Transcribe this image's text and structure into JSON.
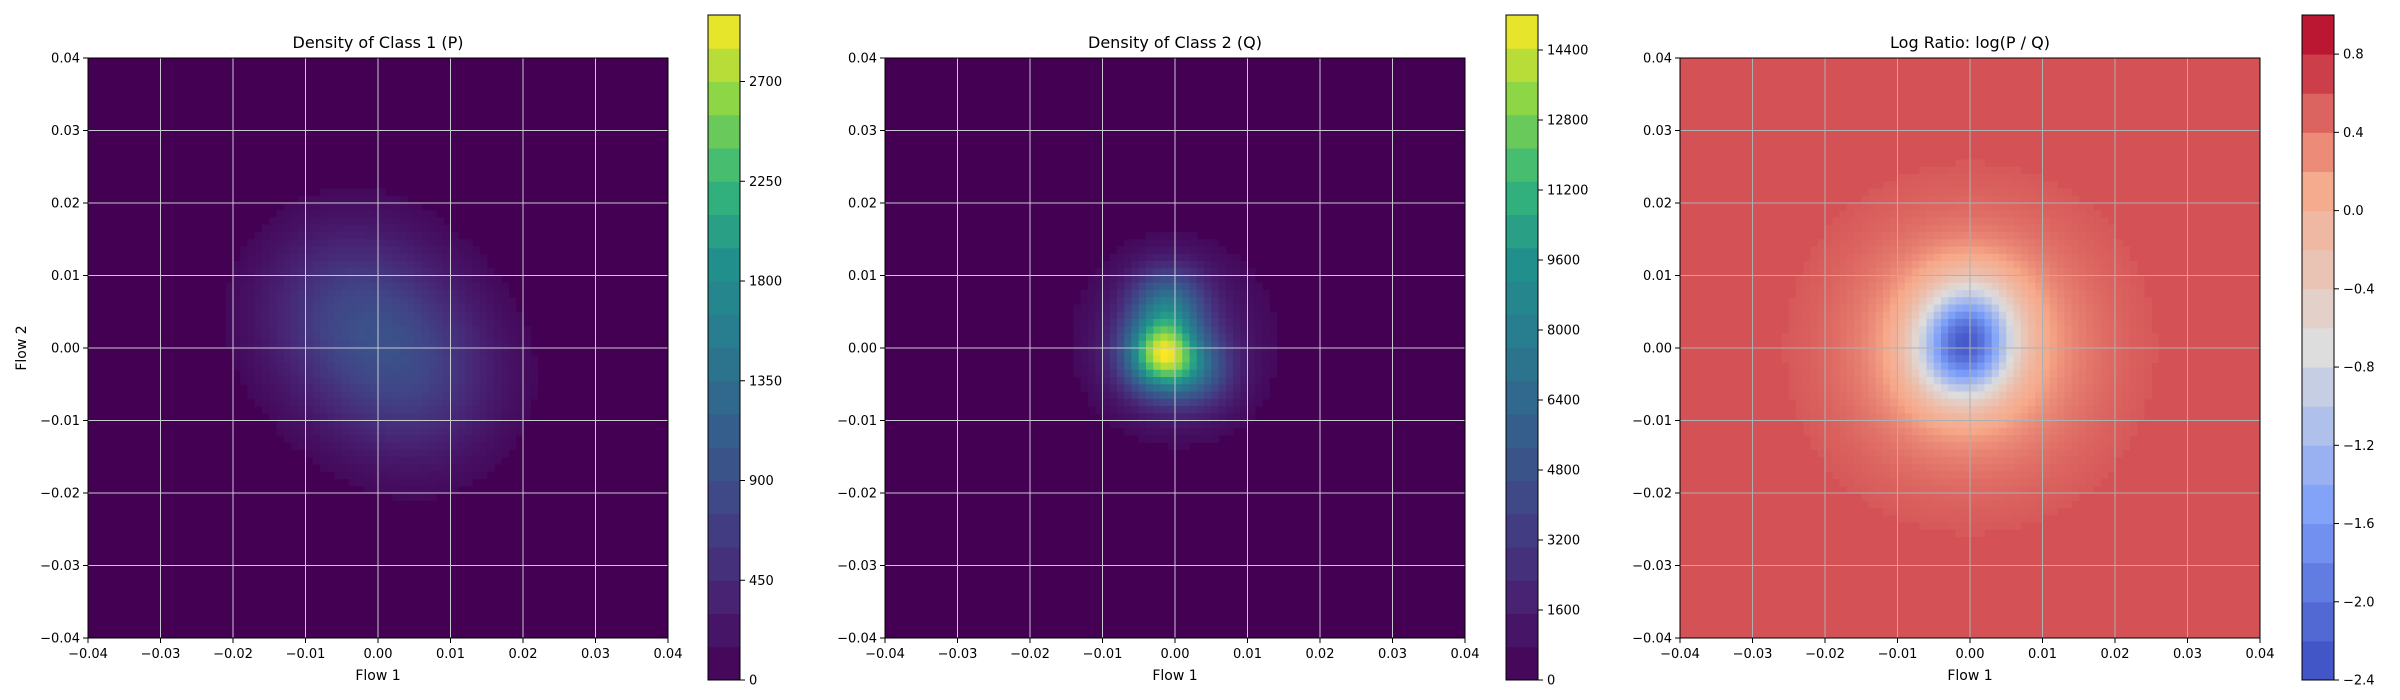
{
  "chart_data": [
    {
      "type": "heatmap",
      "title": "Density of Class 1 (P)",
      "xlabel": "Flow 1",
      "ylabel": "Flow 2",
      "xlim": [
        -0.04,
        0.04
      ],
      "ylim": [
        -0.04,
        0.04
      ],
      "xticks": [
        "−0.04",
        "−0.03",
        "−0.02",
        "−0.01",
        "0.00",
        "0.01",
        "0.02",
        "0.03",
        "0.04"
      ],
      "yticks": [
        "−0.04",
        "−0.03",
        "−0.02",
        "−0.01",
        "0.00",
        "0.01",
        "0.02",
        "0.03",
        "0.04"
      ],
      "grid": true,
      "colormap": "viridis",
      "colorbar": {
        "range": [
          0,
          3000
        ],
        "tick_values": [
          0,
          450,
          900,
          1350,
          1800,
          2250,
          2700
        ],
        "tick_labels": [
          "0",
          "450",
          "900",
          "1350",
          "1800",
          "2250",
          "2700"
        ]
      },
      "peaks": [
        {
          "x": -0.004,
          "y": 0.005,
          "value": 650
        },
        {
          "x": 0.005,
          "y": -0.004,
          "value": 600
        }
      ]
    },
    {
      "type": "heatmap",
      "title": "Density of Class 2 (Q)",
      "xlabel": "Flow 1",
      "ylabel": "",
      "xlim": [
        -0.04,
        0.04
      ],
      "ylim": [
        -0.04,
        0.04
      ],
      "xticks": [
        "−0.04",
        "−0.03",
        "−0.02",
        "−0.01",
        "0.00",
        "0.01",
        "0.02",
        "0.03",
        "0.04"
      ],
      "yticks": [
        "−0.04",
        "−0.03",
        "−0.02",
        "−0.01",
        "0.00",
        "0.01",
        "0.02",
        "0.03",
        "0.04"
      ],
      "grid": true,
      "colormap": "viridis",
      "colorbar": {
        "range": [
          0,
          15200
        ],
        "tick_values": [
          0,
          1600,
          3200,
          4800,
          6400,
          8000,
          9600,
          11200,
          12800,
          14400
        ],
        "tick_labels": [
          "0",
          "1600",
          "3200",
          "4800",
          "6400",
          "8000",
          "9600",
          "11200",
          "12800",
          "14400"
        ]
      },
      "peaks": [
        {
          "x": -0.002,
          "y": -0.001,
          "value": 11500
        },
        {
          "x": -0.001,
          "y": 0.006,
          "value": 5500
        },
        {
          "x": 0.003,
          "y": -0.003,
          "value": 4000
        }
      ]
    },
    {
      "type": "heatmap",
      "title": "Log Ratio: log(P / Q)",
      "xlabel": "Flow 1",
      "ylabel": "",
      "xlim": [
        -0.04,
        0.04
      ],
      "ylim": [
        -0.04,
        0.04
      ],
      "xticks": [
        "−0.04",
        "−0.03",
        "−0.02",
        "−0.01",
        "0.00",
        "0.01",
        "0.02",
        "0.03",
        "0.04"
      ],
      "yticks": [
        "−0.04",
        "−0.03",
        "−0.02",
        "−0.01",
        "0.00",
        "0.01",
        "0.02",
        "0.03",
        "0.04"
      ],
      "grid": true,
      "colormap": "coolwarm",
      "colorbar": {
        "range": [
          -2.4,
          1.0
        ],
        "tick_values": [
          -2.4,
          -2.0,
          -1.6,
          -1.2,
          -0.8,
          -0.4,
          0.0,
          0.4,
          0.8
        ],
        "tick_labels": [
          "−2.4",
          "−2.0",
          "−1.6",
          "−1.2",
          "−0.8",
          "−0.4",
          "0.0",
          "0.4",
          "0.8"
        ]
      },
      "features": [
        {
          "x": -0.001,
          "y": -0.001,
          "value": -2.3
        },
        {
          "x": 0.0,
          "y": 0.004,
          "value": -1.3
        }
      ],
      "background_value": 0.6
    }
  ]
}
